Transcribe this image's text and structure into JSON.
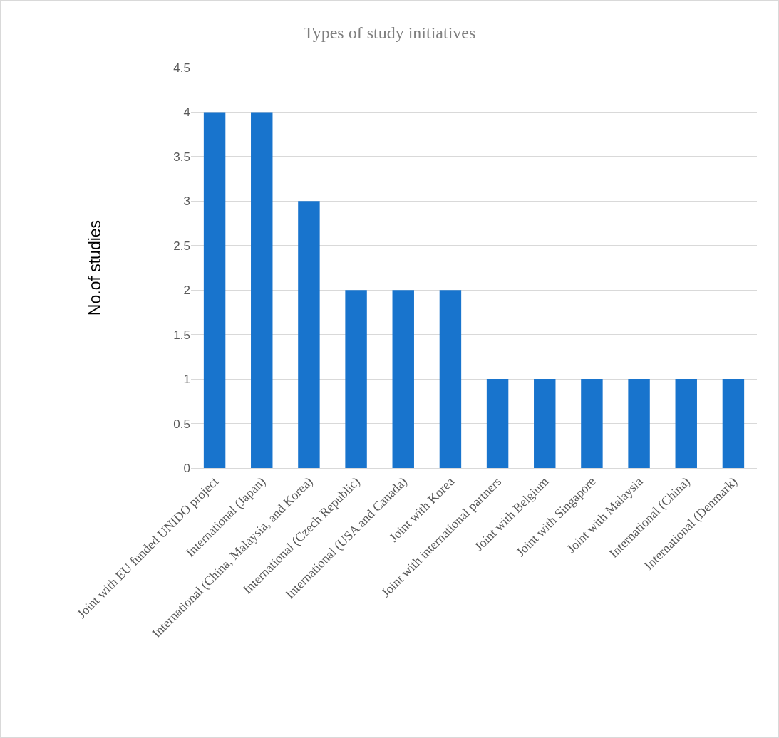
{
  "chart_data": {
    "type": "bar",
    "title": "Types of study initiatives",
    "ylabel": "No.of studies",
    "categories": [
      "Joint with EU funded UNIDO project",
      "International (Japan)",
      "International (China, Malaysia, and Korea)",
      "International (Czech Republic)",
      "International (USA and Canada)",
      "Joint with Korea",
      "Joint with international partners",
      "Joint with Belgium",
      "Joint with Singapore",
      "Joint with Malaysia",
      "International (China)",
      "International (Denmark)"
    ],
    "values": [
      4,
      4,
      3,
      2,
      2,
      2,
      1,
      1,
      1,
      1,
      1,
      1
    ],
    "color": "#1874cd",
    "ylim": [
      0,
      4.5
    ],
    "yticks": [
      0,
      0.5,
      1,
      1.5,
      2,
      2.5,
      3,
      3.5,
      4,
      4.5
    ],
    "grid": "y"
  }
}
